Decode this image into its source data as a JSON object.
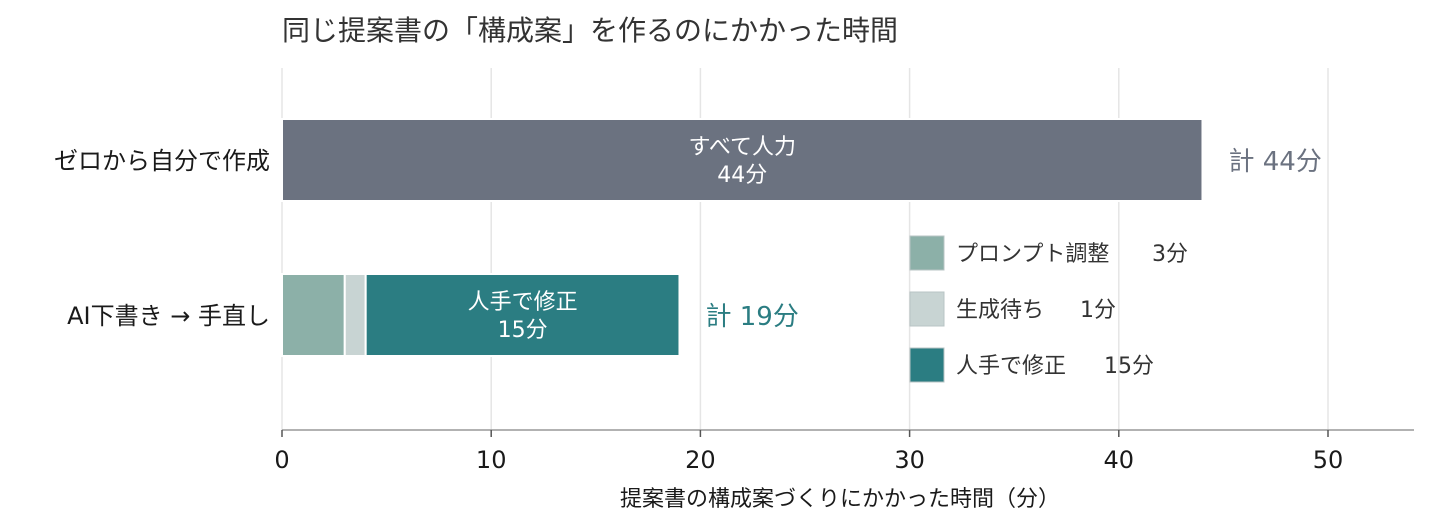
{
  "chart_data": {
    "type": "bar",
    "orientation": "horizontal",
    "stacked": true,
    "title": "同じ提案書の「構成案」を作るのにかかった時間",
    "xlabel": "提案書の構成案づくりにかかった時間（分）",
    "ylabel": "",
    "xlim": [
      0,
      54
    ],
    "x_ticks": [
      0,
      10,
      20,
      30,
      40,
      50
    ],
    "grid": "vertical",
    "legend_position": "right-middle",
    "colors": {
      "manual": "#6b7280",
      "prompt": "#8cb0a8",
      "wait": "#c8d4d3",
      "fix": "#2b7d82",
      "grid": "#e5e5e5",
      "axis": "#999999",
      "text": "#1a1a1a",
      "title": "#333333",
      "legend_text": "#333333",
      "bar_text": "#ffffff"
    },
    "categories": [
      "ゼロから自分で作成",
      "AI下書き → 手直し"
    ],
    "bars": [
      {
        "category": "ゼロから自分で作成",
        "total_label": "計 44分",
        "total_color": "#6b7280",
        "segments": [
          {
            "key": "manual",
            "value": 44,
            "color": "#6b7280",
            "label_line1": "すべて人力",
            "label_line2": "44分"
          }
        ]
      },
      {
        "category": "AI下書き → 手直し",
        "total_label": "計 19分",
        "total_color": "#2b7d82",
        "segments": [
          {
            "key": "prompt",
            "value": 3,
            "color": "#8cb0a8",
            "label_line1": "",
            "label_line2": ""
          },
          {
            "key": "wait",
            "value": 1,
            "color": "#c8d4d3",
            "label_line1": "",
            "label_line2": ""
          },
          {
            "key": "fix",
            "value": 15,
            "color": "#2b7d82",
            "label_line1": "人手で修正",
            "label_line2": "15分"
          }
        ]
      }
    ],
    "legend": [
      {
        "name": "プロンプト調整",
        "value_label": "3分",
        "color": "#8cb0a8"
      },
      {
        "name": "生成待ち",
        "value_label": "1分",
        "color": "#c8d4d3"
      },
      {
        "name": "人手で修正",
        "value_label": "15分",
        "color": "#2b7d82"
      }
    ]
  }
}
